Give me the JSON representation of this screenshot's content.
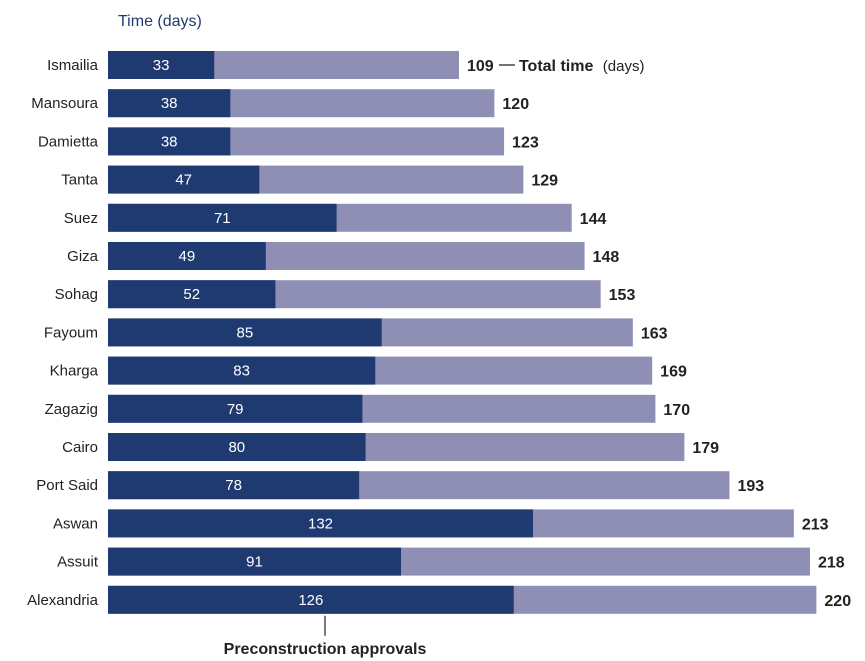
{
  "chart_data": {
    "type": "bar",
    "ylabel": "Time (days)",
    "categories": [
      "Ismailia",
      "Mansoura",
      "Damietta",
      "Tanta",
      "Suez",
      "Giza",
      "Sohag",
      "Fayoum",
      "Kharga",
      "Zagazig",
      "Cairo",
      "Port Said",
      "Aswan",
      "Assuit",
      "Alexandria"
    ],
    "series": [
      {
        "name": "Preconstruction approvals",
        "values": [
          33,
          38,
          38,
          47,
          71,
          49,
          52,
          85,
          83,
          79,
          80,
          78,
          132,
          91,
          126
        ]
      },
      {
        "name": "Total time",
        "values": [
          109,
          120,
          123,
          129,
          144,
          148,
          153,
          163,
          169,
          170,
          179,
          193,
          213,
          218,
          220
        ]
      }
    ],
    "annotations": {
      "total_label": "Total time",
      "total_unit": "(days)",
      "preconstruction_label": "Preconstruction approvals"
    }
  },
  "colors": {
    "preconstruction": "#1f3a70",
    "total": "#8f8fb5"
  }
}
